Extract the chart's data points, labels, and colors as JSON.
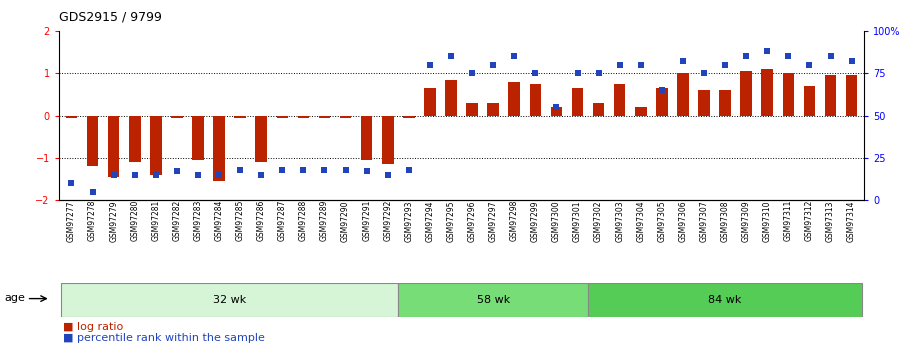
{
  "title": "GDS2915 / 9799",
  "samples": [
    "GSM97277",
    "GSM97278",
    "GSM97279",
    "GSM97280",
    "GSM97281",
    "GSM97282",
    "GSM97283",
    "GSM97284",
    "GSM97285",
    "GSM97286",
    "GSM97287",
    "GSM97288",
    "GSM97289",
    "GSM97290",
    "GSM97291",
    "GSM97292",
    "GSM97293",
    "GSM97294",
    "GSM97295",
    "GSM97296",
    "GSM97297",
    "GSM97298",
    "GSM97299",
    "GSM97300",
    "GSM97301",
    "GSM97302",
    "GSM97303",
    "GSM97304",
    "GSM97305",
    "GSM97306",
    "GSM97307",
    "GSM97308",
    "GSM97309",
    "GSM97310",
    "GSM97311",
    "GSM97312",
    "GSM97313",
    "GSM97314"
  ],
  "log_ratio": [
    -0.05,
    -1.2,
    -1.45,
    -1.1,
    -1.4,
    -0.05,
    -1.05,
    -1.55,
    -0.05,
    -1.1,
    -0.05,
    -0.05,
    -0.05,
    -0.05,
    -1.05,
    -1.15,
    -0.05,
    0.65,
    0.85,
    0.3,
    0.3,
    0.8,
    0.75,
    0.2,
    0.65,
    0.3,
    0.75,
    0.2,
    0.65,
    1.0,
    0.6,
    0.6,
    1.05,
    1.1,
    1.0,
    0.7,
    0.95,
    0.95
  ],
  "percentile_pct": [
    10,
    5,
    15,
    15,
    15,
    17,
    15,
    15,
    18,
    15,
    18,
    18,
    18,
    18,
    17,
    15,
    18,
    80,
    85,
    75,
    80,
    85,
    75,
    55,
    75,
    75,
    80,
    80,
    65,
    82,
    75,
    80,
    85,
    88,
    85,
    80,
    85,
    82
  ],
  "groups": [
    {
      "label": "32 wk",
      "start": 0,
      "end": 16,
      "color": "#d6f5d6"
    },
    {
      "label": "58 wk",
      "start": 16,
      "end": 25,
      "color": "#77dd77"
    },
    {
      "label": "84 wk",
      "start": 25,
      "end": 38,
      "color": "#55cc55"
    }
  ],
  "bar_color": "#bb2200",
  "dot_color": "#2244bb",
  "ylim_left": [
    -2,
    2
  ],
  "ylim_right": [
    0,
    100
  ],
  "yticks_left": [
    -2,
    -1,
    0,
    1,
    2
  ],
  "yticks_right": [
    0,
    25,
    50,
    75,
    100
  ],
  "ytick_labels_right": [
    "0",
    "25",
    "50",
    "75",
    "100%"
  ],
  "hlines": [
    -1,
    0,
    1
  ],
  "legend_bar": "log ratio",
  "legend_dot": "percentile rank within the sample",
  "age_label": "age"
}
